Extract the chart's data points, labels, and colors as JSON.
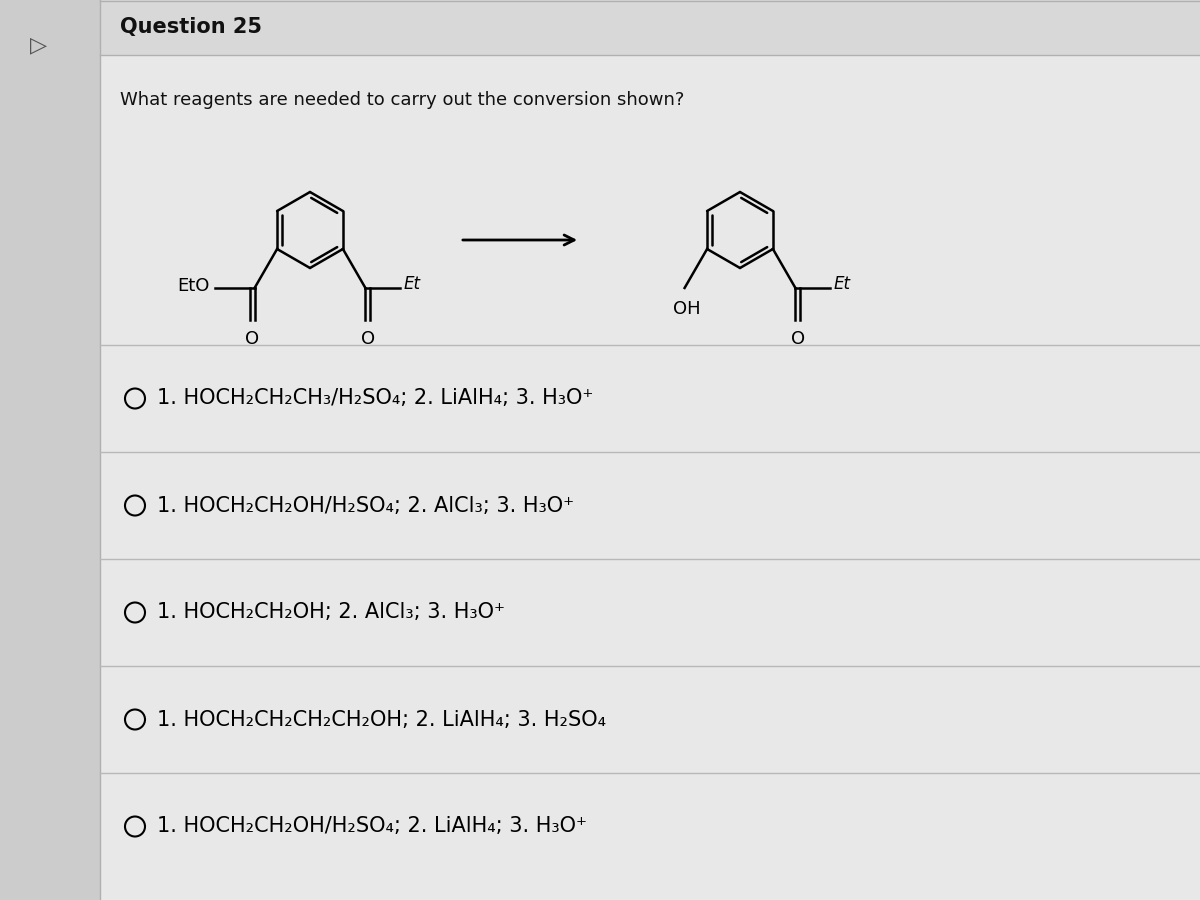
{
  "title": "Question 25",
  "question": "What reagents are needed to carry out the conversion shown?",
  "bg_color": "#d4d4d4",
  "panel_color": "#e8e8e8",
  "content_bg": "#e8e8e8",
  "options": [
    "1. HOCH₂CH₂CH₃/H₂SO₄; 2. LiAlH₄; 3. H₃O⁺",
    "1. HOCH₂CH₂OH/H₂SO₄; 2. AlCl₃; 3. H₃O⁺",
    "1. HOCH₂CH₂OH; 2. AlCl₃; 3. H₃O⁺",
    "1. HOCH₂CH₂CH₂CH₂OH; 2. LiAlH₄; 3. H₂SO₄",
    "1. HOCH₂CH₂OH/H₂SO₄; 2. LiAlH₄; 3. H₃O⁺"
  ],
  "title_fontsize": 15,
  "question_fontsize": 13,
  "option_fontsize": 15
}
